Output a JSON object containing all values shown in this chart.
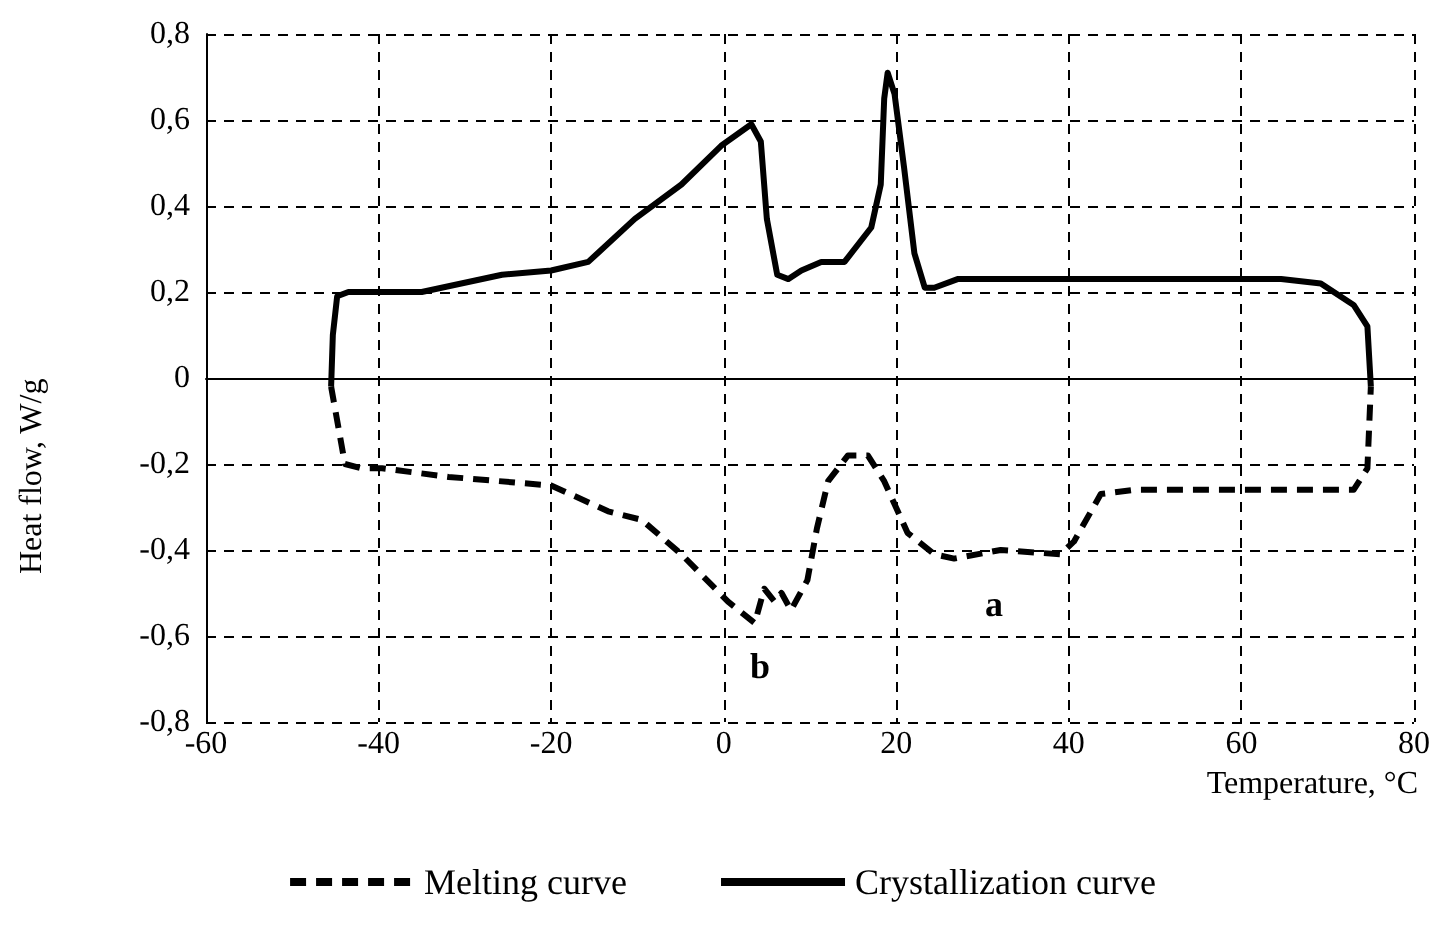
{
  "chart_data": {
    "type": "line",
    "xlabel": "Temperature, °C",
    "ylabel": "Heat flow, W/g",
    "xlim": [
      -60,
      80
    ],
    "xticks": [
      -60,
      -40,
      -20,
      0,
      20,
      40,
      60,
      80
    ],
    "ylim": [
      -0.8,
      0.8
    ],
    "yticks": [
      {
        "value": -0.8,
        "label": "-0,8"
      },
      {
        "value": -0.6,
        "label": "-0,6"
      },
      {
        "value": -0.4,
        "label": "-0,4"
      },
      {
        "value": -0.2,
        "label": "-0,2"
      },
      {
        "value": 0,
        "label": "0"
      },
      {
        "value": 0.2,
        "label": "0,2"
      },
      {
        "value": 0.4,
        "label": "0,4"
      },
      {
        "value": 0.6,
        "label": "0,6"
      },
      {
        "value": 0.8,
        "label": "0,8"
      }
    ],
    "grid": true,
    "legend": "bottom",
    "marker": "none",
    "series": [
      {
        "name": "Melting curve",
        "color": "#000000",
        "line_style": "dashed",
        "x": [
          -45.5,
          -44.7,
          -43.9,
          -42,
          -39.6,
          -31.9,
          -20,
          -13.4,
          -9.5,
          -4.9,
          0.5,
          3.6,
          4.7,
          5.9,
          6.7,
          7.8,
          9.7,
          10.8,
          12.1,
          14.4,
          16.7,
          18.6,
          21.3,
          24.4,
          26.7,
          32.1,
          39,
          40.6,
          43.7,
          47.6,
          60,
          73,
          74.6,
          75
        ],
        "values": [
          -0.02,
          -0.11,
          -0.2,
          -0.21,
          -0.21,
          -0.23,
          -0.25,
          -0.31,
          -0.33,
          -0.41,
          -0.52,
          -0.57,
          -0.49,
          -0.52,
          -0.5,
          -0.54,
          -0.47,
          -0.35,
          -0.24,
          -0.18,
          -0.18,
          -0.24,
          -0.36,
          -0.41,
          -0.42,
          -0.4,
          -0.41,
          -0.38,
          -0.27,
          -0.26,
          -0.26,
          -0.26,
          -0.21,
          -0.02
        ]
      },
      {
        "name": "Crystallization curve",
        "color": "#000000",
        "line_style": "solid",
        "x": [
          -45.5,
          -45.3,
          -44.8,
          -43.5,
          -40,
          -35,
          -25.7,
          -20,
          -15.7,
          -10.3,
          -4.9,
          -0.3,
          3.2,
          4.3,
          5,
          6.2,
          7.5,
          9,
          11.3,
          14,
          17.1,
          18.2,
          18.6,
          19,
          19.8,
          20.9,
          22.1,
          23.3,
          24.4,
          27.1,
          60,
          64.6,
          69.2,
          73,
          74.6,
          75
        ],
        "values": [
          -0.02,
          0.1,
          0.19,
          0.2,
          0.2,
          0.2,
          0.24,
          0.25,
          0.27,
          0.37,
          0.45,
          0.54,
          0.59,
          0.55,
          0.37,
          0.24,
          0.23,
          0.25,
          0.27,
          0.27,
          0.35,
          0.45,
          0.65,
          0.71,
          0.66,
          0.49,
          0.29,
          0.21,
          0.21,
          0.23,
          0.23,
          0.23,
          0.22,
          0.17,
          0.12,
          -0.02
        ]
      }
    ],
    "annotations": [
      "a",
      "b"
    ]
  }
}
